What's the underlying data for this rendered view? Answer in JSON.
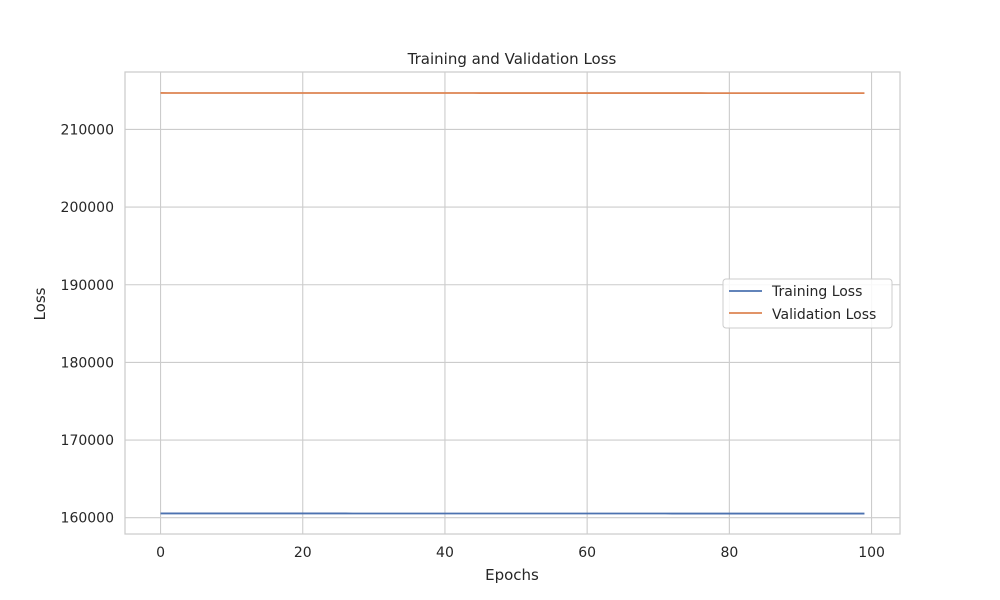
{
  "chart_data": {
    "type": "line",
    "title": "Training and Validation Loss",
    "xlabel": "Epochs",
    "ylabel": "Loss",
    "xlim": [
      -5,
      104
    ],
    "ylim": [
      157900,
      217400
    ],
    "x_ticks": [
      0,
      20,
      40,
      60,
      80,
      100
    ],
    "y_ticks": [
      160000,
      170000,
      180000,
      190000,
      200000,
      210000
    ],
    "grid": true,
    "legend_position": "center-right",
    "x": {
      "start": 0,
      "end": 99,
      "step": 1
    },
    "series": [
      {
        "name": "Training Loss",
        "color": "#4c72b0",
        "start_value": 160550,
        "end_value": 160530
      },
      {
        "name": "Validation Loss",
        "color": "#dd8452",
        "start_value": 214700,
        "end_value": 214680
      }
    ]
  }
}
